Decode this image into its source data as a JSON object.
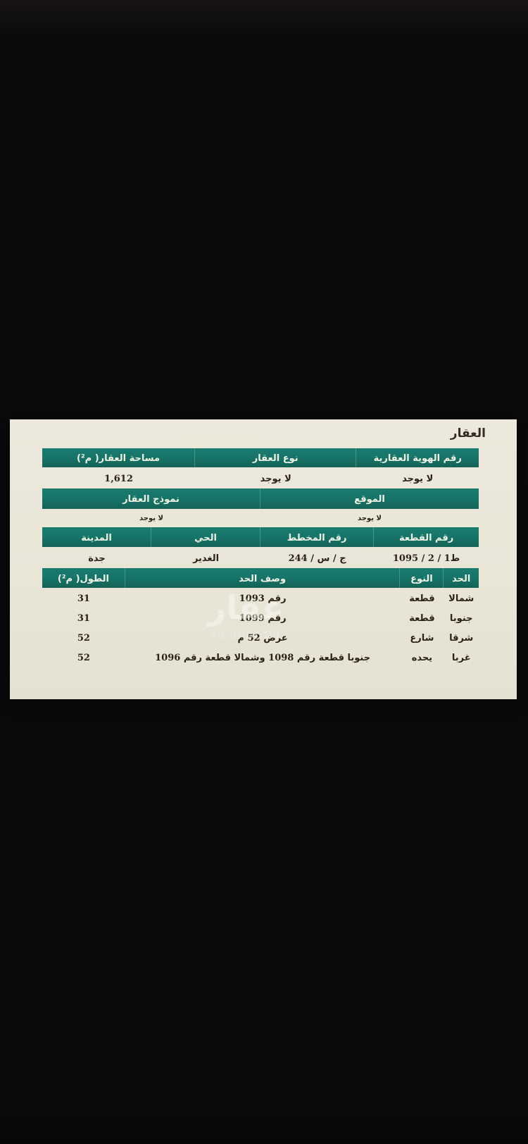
{
  "document": {
    "title": "العقار",
    "identity_table": {
      "headers": [
        "رقم الهوية العقارية",
        "نوع العقار",
        "مساحة العقار( م²)"
      ],
      "values": [
        "لا يوجد",
        "لا يوجد",
        "1,612"
      ]
    },
    "location_table": {
      "headers": [
        "الموقع",
        "نموذج العقار"
      ],
      "values": [
        "لا يوجد",
        "لا يوجد"
      ]
    },
    "plot_table": {
      "headers": [
        "رقم القطعة",
        "رقم المخطط",
        "الحي",
        "المدينة"
      ],
      "values": [
        "ط1 / 2 / 1095",
        "ج / س / 244",
        "الغدير",
        "جدة"
      ]
    },
    "boundaries_table": {
      "headers": [
        "الحد",
        "النوع",
        "وصف الحد",
        "الطول( م²)"
      ],
      "rows": [
        {
          "side": "شمالا",
          "type": "قطعة",
          "description": "رقم 1093",
          "length": "31"
        },
        {
          "side": "جنوبا",
          "type": "قطعة",
          "description": "رقم 1099",
          "length": "31"
        },
        {
          "side": "شرقا",
          "type": "شارع",
          "description": "عرض 52 م",
          "length": "52"
        },
        {
          "side": "غربا",
          "type": "يحده",
          "description": "جنوبا قطعة رقم 1098 وشمالا قطعة رقم 1096",
          "length": "52"
        }
      ]
    }
  },
  "watermark": {
    "brand": "عقار",
    "site": "sa.aqar.fm"
  },
  "colors": {
    "header_bg": "#17756a",
    "paper": "#e9e5d7",
    "background": "#0c0b0b",
    "header_text": "#eff3e4",
    "body_text": "#2a2316"
  }
}
